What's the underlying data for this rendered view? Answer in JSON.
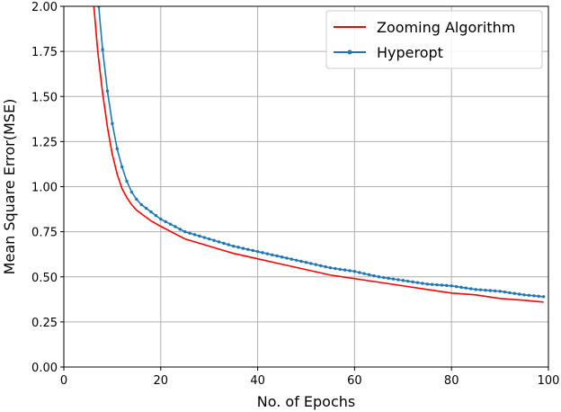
{
  "chart_data": {
    "type": "line",
    "title": "",
    "xlabel": "No. of Epochs",
    "ylabel": "Mean Square Error(MSE)",
    "xlim": [
      0,
      100
    ],
    "ylim": [
      0,
      2.0
    ],
    "x_ticks": [
      "0",
      "20",
      "40",
      "60",
      "80",
      "100"
    ],
    "y_ticks": [
      "0.00",
      "0.25",
      "0.50",
      "0.75",
      "1.00",
      "1.25",
      "1.50",
      "1.75",
      "2.00"
    ],
    "grid": true,
    "legend_position": "top-right",
    "series": [
      {
        "name": "Zooming Algorithm",
        "color": "#ff0000",
        "marker": false,
        "x": [
          6.2,
          7,
          8,
          9,
          10,
          11,
          12,
          13,
          14,
          15,
          16,
          18,
          20,
          25,
          30,
          35,
          40,
          45,
          50,
          55,
          60,
          65,
          70,
          75,
          80,
          85,
          90,
          95,
          99
        ],
        "y": [
          2.0,
          1.75,
          1.52,
          1.33,
          1.18,
          1.07,
          0.99,
          0.94,
          0.9,
          0.87,
          0.85,
          0.81,
          0.78,
          0.71,
          0.67,
          0.63,
          0.6,
          0.57,
          0.54,
          0.51,
          0.49,
          0.47,
          0.45,
          0.43,
          0.41,
          0.4,
          0.38,
          0.37,
          0.36
        ]
      },
      {
        "name": "Hyperopt",
        "color": "#1f77b4",
        "marker": true,
        "x": [
          7.2,
          8,
          9,
          10,
          11,
          12,
          13,
          14,
          15,
          16,
          18,
          20,
          25,
          30,
          35,
          40,
          45,
          50,
          55,
          60,
          65,
          70,
          75,
          80,
          85,
          90,
          95,
          99
        ],
        "y": [
          2.0,
          1.76,
          1.53,
          1.35,
          1.21,
          1.11,
          1.03,
          0.97,
          0.93,
          0.9,
          0.86,
          0.82,
          0.75,
          0.71,
          0.67,
          0.64,
          0.61,
          0.58,
          0.55,
          0.53,
          0.5,
          0.48,
          0.46,
          0.45,
          0.43,
          0.42,
          0.4,
          0.39
        ]
      }
    ]
  }
}
